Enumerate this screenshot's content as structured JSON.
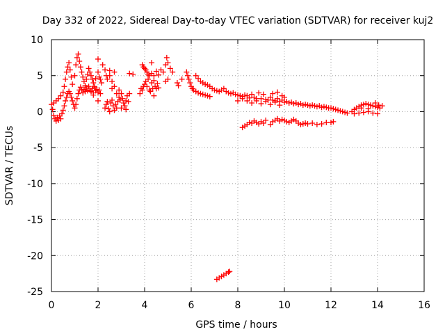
{
  "chart_data": {
    "type": "scatter",
    "title": "Day 332 of 2022, Sidereal Day-to-day VTEC variation (SDTVAR) for receiver kuj2",
    "xlabel": "GPS time / hours",
    "ylabel": "SDTVAR / TECUs",
    "xlim": [
      0,
      16
    ],
    "ylim": [
      -25,
      10
    ],
    "x_ticks": [
      0,
      2,
      4,
      6,
      8,
      10,
      12,
      14,
      16
    ],
    "y_ticks": [
      -25,
      -20,
      -15,
      -10,
      -5,
      0,
      5,
      10
    ],
    "grid": true,
    "marker": "plus",
    "color": "#ff0000",
    "series": [
      {
        "name": "SDTVAR",
        "points": [
          [
            0.0,
            1.0
          ],
          [
            0.05,
            0.3
          ],
          [
            0.1,
            -0.5
          ],
          [
            0.15,
            -1.0
          ],
          [
            0.2,
            -1.3
          ],
          [
            0.25,
            -0.8
          ],
          [
            0.3,
            -1.2
          ],
          [
            0.35,
            -0.6
          ],
          [
            0.4,
            -1.0
          ],
          [
            0.45,
            -0.3
          ],
          [
            0.5,
            0.2
          ],
          [
            0.55,
            0.8
          ],
          [
            0.6,
            1.5
          ],
          [
            0.65,
            2.0
          ],
          [
            0.7,
            2.5
          ],
          [
            0.75,
            2.8
          ],
          [
            0.8,
            2.5
          ],
          [
            0.85,
            2.0
          ],
          [
            0.9,
            1.5
          ],
          [
            0.95,
            1.0
          ],
          [
            1.0,
            0.5
          ],
          [
            1.05,
            1.0
          ],
          [
            1.1,
            1.8
          ],
          [
            1.15,
            2.5
          ],
          [
            1.2,
            3.0
          ],
          [
            1.25,
            3.4
          ],
          [
            1.3,
            3.0
          ],
          [
            1.35,
            2.6
          ],
          [
            1.4,
            3.1
          ],
          [
            1.45,
            2.8
          ],
          [
            1.5,
            3.3
          ],
          [
            1.55,
            2.9
          ],
          [
            1.6,
            3.5
          ],
          [
            1.65,
            3.0
          ],
          [
            1.7,
            2.8
          ],
          [
            1.75,
            3.2
          ],
          [
            1.8,
            2.6
          ],
          [
            1.85,
            3.4
          ],
          [
            1.9,
            2.9
          ],
          [
            1.95,
            3.1
          ],
          [
            2.0,
            2.7
          ],
          [
            2.05,
            3.0
          ],
          [
            2.1,
            2.5
          ],
          [
            0.1,
            1.2
          ],
          [
            0.2,
            1.5
          ],
          [
            0.3,
            1.8
          ],
          [
            0.4,
            2.2
          ],
          [
            0.5,
            2.7
          ],
          [
            0.55,
            3.5
          ],
          [
            0.6,
            4.5
          ],
          [
            0.65,
            5.5
          ],
          [
            0.7,
            6.2
          ],
          [
            0.75,
            6.8
          ],
          [
            0.8,
            5.8
          ],
          [
            0.85,
            4.8
          ],
          [
            0.9,
            3.8
          ],
          [
            1.0,
            5.0
          ],
          [
            1.05,
            6.5
          ],
          [
            1.1,
            7.5
          ],
          [
            1.15,
            8.0
          ],
          [
            1.2,
            7.0
          ],
          [
            1.25,
            6.2
          ],
          [
            1.3,
            5.5
          ],
          [
            1.35,
            4.8
          ],
          [
            1.4,
            4.2
          ],
          [
            1.45,
            3.6
          ],
          [
            1.5,
            4.5
          ],
          [
            1.55,
            5.2
          ],
          [
            1.6,
            6.0
          ],
          [
            1.65,
            5.5
          ],
          [
            1.7,
            5.0
          ],
          [
            1.75,
            4.5
          ],
          [
            1.8,
            4.0
          ],
          [
            1.85,
            3.5
          ],
          [
            1.9,
            4.6
          ],
          [
            2.0,
            5.5
          ],
          [
            2.05,
            4.8
          ],
          [
            2.1,
            4.5
          ],
          [
            2.15,
            4.0
          ],
          [
            2.0,
            7.3
          ],
          [
            2.2,
            6.5
          ],
          [
            2.3,
            5.8
          ],
          [
            2.35,
            5.0
          ],
          [
            2.4,
            4.5
          ],
          [
            2.5,
            5.0
          ],
          [
            2.6,
            4.2
          ],
          [
            2.7,
            3.5
          ],
          [
            1.8,
            2.3
          ],
          [
            2.0,
            1.5
          ],
          [
            2.3,
            0.5
          ],
          [
            2.35,
            1.0
          ],
          [
            2.4,
            1.4
          ],
          [
            2.45,
            0.4
          ],
          [
            2.5,
            0.0
          ],
          [
            2.55,
            1.2
          ],
          [
            2.6,
            1.6
          ],
          [
            2.65,
            0.8
          ],
          [
            2.7,
            0.2
          ],
          [
            2.75,
            1.0
          ],
          [
            2.8,
            0.5
          ],
          [
            2.85,
            1.4
          ],
          [
            2.9,
            2.0
          ],
          [
            2.95,
            1.6
          ],
          [
            3.0,
            2.5
          ],
          [
            3.05,
            1.8
          ],
          [
            3.1,
            1.2
          ],
          [
            3.15,
            0.8
          ],
          [
            3.2,
            1.5
          ],
          [
            3.25,
            2.2
          ],
          [
            3.3,
            1.4
          ],
          [
            3.35,
            2.5
          ],
          [
            2.6,
            3.2
          ],
          [
            2.8,
            2.5
          ],
          [
            2.9,
            3.0
          ],
          [
            3.0,
            0.5
          ],
          [
            3.2,
            0.3
          ],
          [
            3.35,
            5.3
          ],
          [
            2.5,
            5.7
          ],
          [
            2.7,
            5.5
          ],
          [
            3.8,
            2.5
          ],
          [
            3.85,
            3.2
          ],
          [
            3.9,
            3.0
          ],
          [
            3.95,
            3.5
          ],
          [
            4.0,
            3.8
          ],
          [
            4.05,
            4.2
          ],
          [
            4.1,
            3.5
          ],
          [
            4.15,
            4.5
          ],
          [
            4.2,
            3.0
          ],
          [
            4.25,
            2.8
          ],
          [
            4.3,
            4.0
          ],
          [
            4.35,
            3.2
          ],
          [
            4.4,
            4.3
          ],
          [
            4.45,
            3.5
          ],
          [
            4.5,
            3.2
          ],
          [
            4.55,
            3.9
          ],
          [
            4.6,
            3.3
          ],
          [
            4.4,
            2.2
          ],
          [
            3.9,
            6.5
          ],
          [
            3.95,
            6.2
          ],
          [
            4.0,
            6.0
          ],
          [
            4.05,
            5.8
          ],
          [
            4.1,
            5.5
          ],
          [
            4.15,
            5.2
          ],
          [
            4.2,
            5.0
          ],
          [
            4.3,
            5.3
          ],
          [
            4.4,
            5.0
          ],
          [
            4.5,
            5.6
          ],
          [
            4.6,
            5.1
          ],
          [
            4.7,
            5.8
          ],
          [
            4.8,
            5.5
          ],
          [
            4.9,
            6.5
          ],
          [
            4.95,
            7.5
          ],
          [
            5.0,
            6.8
          ],
          [
            5.1,
            6.0
          ],
          [
            5.2,
            5.5
          ],
          [
            4.9,
            4.2
          ],
          [
            5.0,
            4.5
          ],
          [
            5.4,
            4.0
          ],
          [
            5.45,
            3.6
          ],
          [
            5.6,
            4.5
          ],
          [
            4.3,
            6.8
          ],
          [
            3.5,
            5.2
          ],
          [
            5.8,
            5.5
          ],
          [
            5.85,
            5.0
          ],
          [
            5.9,
            4.5
          ],
          [
            5.95,
            4.0
          ],
          [
            6.0,
            3.5
          ],
          [
            6.05,
            3.2
          ],
          [
            6.1,
            3.0
          ],
          [
            6.2,
            2.8
          ],
          [
            6.3,
            2.6
          ],
          [
            6.4,
            2.5
          ],
          [
            6.5,
            2.4
          ],
          [
            6.6,
            2.3
          ],
          [
            6.7,
            2.2
          ],
          [
            6.8,
            2.1
          ],
          [
            6.2,
            5.0
          ],
          [
            6.3,
            4.6
          ],
          [
            6.4,
            4.2
          ],
          [
            6.5,
            4.0
          ],
          [
            6.6,
            3.8
          ],
          [
            6.7,
            3.7
          ],
          [
            6.8,
            3.5
          ],
          [
            6.9,
            3.2
          ],
          [
            7.0,
            3.0
          ],
          [
            7.1,
            2.9
          ],
          [
            7.2,
            2.8
          ],
          [
            7.3,
            3.0
          ],
          [
            7.4,
            3.2
          ],
          [
            7.5,
            2.8
          ],
          [
            7.6,
            2.6
          ],
          [
            7.7,
            2.5
          ],
          [
            7.8,
            2.6
          ],
          [
            7.9,
            2.4
          ],
          [
            8.0,
            2.3
          ],
          [
            8.1,
            2.2
          ],
          [
            8.2,
            2.1
          ],
          [
            8.3,
            2.3
          ],
          [
            8.4,
            2.2
          ],
          [
            8.5,
            1.9
          ],
          [
            8.6,
            2.4
          ],
          [
            8.7,
            2.0
          ],
          [
            8.8,
            1.8
          ],
          [
            8.9,
            2.6
          ],
          [
            9.0,
            1.8
          ],
          [
            9.1,
            2.4
          ],
          [
            9.2,
            1.7
          ],
          [
            9.3,
            1.6
          ],
          [
            9.4,
            2.0
          ],
          [
            9.5,
            1.6
          ],
          [
            9.6,
            1.5
          ],
          [
            9.7,
            1.8
          ],
          [
            9.8,
            1.4
          ],
          [
            9.9,
            1.6
          ],
          [
            10.0,
            1.3
          ],
          [
            10.1,
            1.4
          ],
          [
            10.2,
            1.2
          ],
          [
            10.3,
            1.3
          ],
          [
            10.4,
            1.1
          ],
          [
            10.5,
            1.2
          ],
          [
            10.6,
            1.0
          ],
          [
            10.7,
            1.1
          ],
          [
            10.8,
            0.9
          ],
          [
            10.9,
            1.0
          ],
          [
            11.0,
            0.9
          ],
          [
            11.1,
            0.8
          ],
          [
            11.2,
            0.9
          ],
          [
            11.3,
            0.8
          ],
          [
            11.4,
            0.7
          ],
          [
            11.5,
            0.8
          ],
          [
            11.6,
            0.6
          ],
          [
            11.7,
            0.7
          ],
          [
            11.8,
            0.6
          ],
          [
            11.9,
            0.5
          ],
          [
            12.0,
            0.5
          ],
          [
            12.1,
            0.4
          ],
          [
            12.2,
            0.3
          ],
          [
            12.3,
            0.2
          ],
          [
            12.4,
            0.1
          ],
          [
            12.5,
            0.0
          ],
          [
            12.6,
            -0.1
          ],
          [
            12.7,
            -0.2
          ],
          [
            8.0,
            1.5
          ],
          [
            8.2,
            1.8
          ],
          [
            8.4,
            1.5
          ],
          [
            8.6,
            1.2
          ],
          [
            8.8,
            1.5
          ],
          [
            9.0,
            1.1
          ],
          [
            9.2,
            1.4
          ],
          [
            9.4,
            1.0
          ],
          [
            9.6,
            1.3
          ],
          [
            9.8,
            0.9
          ],
          [
            9.5,
            2.5
          ],
          [
            9.7,
            2.7
          ],
          [
            9.9,
            2.2
          ],
          [
            10.0,
            2.0
          ],
          [
            8.2,
            -2.2
          ],
          [
            8.3,
            -2.0
          ],
          [
            8.4,
            -1.8
          ],
          [
            8.5,
            -1.5
          ],
          [
            8.6,
            -1.6
          ],
          [
            8.7,
            -1.3
          ],
          [
            8.8,
            -1.5
          ],
          [
            8.9,
            -1.7
          ],
          [
            9.0,
            -1.4
          ],
          [
            9.1,
            -1.6
          ],
          [
            9.2,
            -1.2
          ],
          [
            9.4,
            -1.8
          ],
          [
            9.5,
            -1.4
          ],
          [
            9.6,
            -1.2
          ],
          [
            9.7,
            -1.0
          ],
          [
            9.8,
            -1.3
          ],
          [
            9.9,
            -1.1
          ],
          [
            10.0,
            -1.2
          ],
          [
            10.1,
            -1.4
          ],
          [
            10.2,
            -1.5
          ],
          [
            10.3,
            -1.3
          ],
          [
            10.4,
            -1.1
          ],
          [
            10.5,
            -1.3
          ],
          [
            10.6,
            -1.6
          ],
          [
            10.7,
            -1.8
          ],
          [
            10.8,
            -1.7
          ],
          [
            10.9,
            -1.6
          ],
          [
            11.0,
            -1.7
          ],
          [
            11.2,
            -1.6
          ],
          [
            11.4,
            -1.8
          ],
          [
            11.6,
            -1.7
          ],
          [
            11.8,
            -1.5
          ],
          [
            12.0,
            -1.5
          ],
          [
            12.1,
            -1.4
          ],
          [
            12.9,
            0.0
          ],
          [
            13.0,
            0.3
          ],
          [
            13.1,
            0.5
          ],
          [
            13.2,
            0.7
          ],
          [
            13.3,
            0.9
          ],
          [
            13.4,
            1.0
          ],
          [
            13.5,
            1.1
          ],
          [
            13.6,
            1.0
          ],
          [
            13.7,
            0.9
          ],
          [
            13.8,
            0.8
          ],
          [
            13.9,
            0.7
          ],
          [
            14.0,
            0.6
          ],
          [
            14.1,
            0.5
          ],
          [
            14.2,
            0.8
          ],
          [
            13.0,
            -0.3
          ],
          [
            13.2,
            -0.2
          ],
          [
            13.4,
            -0.1
          ],
          [
            13.6,
            0.0
          ],
          [
            13.8,
            -0.2
          ],
          [
            14.0,
            -0.3
          ],
          [
            13.3,
            0.5
          ],
          [
            13.6,
            0.4
          ],
          [
            13.9,
            1.2
          ],
          [
            14.05,
            0.9
          ],
          [
            7.1,
            -23.3
          ],
          [
            7.2,
            -23.1
          ],
          [
            7.3,
            -22.9
          ],
          [
            7.4,
            -22.7
          ],
          [
            7.5,
            -22.5
          ],
          [
            7.6,
            -22.3
          ],
          [
            7.65,
            -22.2
          ]
        ]
      }
    ]
  }
}
